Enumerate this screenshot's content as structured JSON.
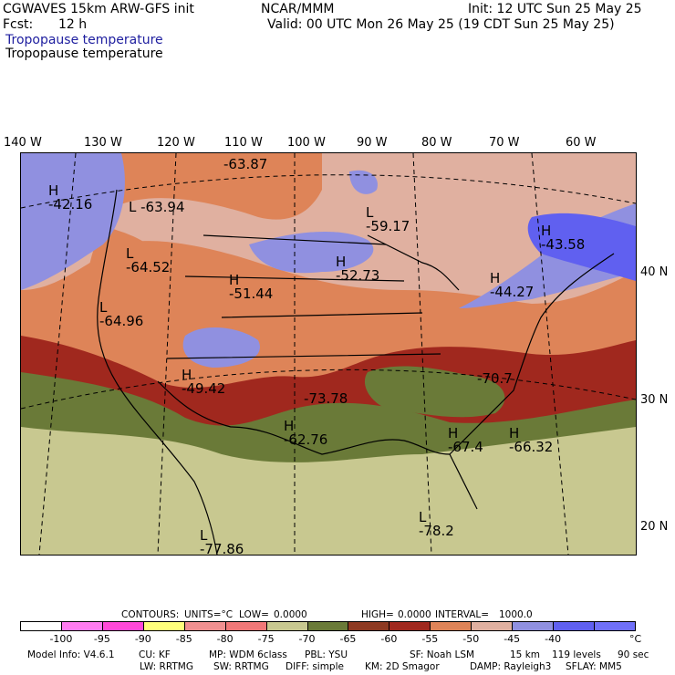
{
  "header": {
    "model": "CGWAVES 15km ARW-GFS init",
    "fcst_label": "Fcst:",
    "fcst_value": "12 h",
    "center": "NCAR/MMM",
    "init": "Init: 12 UTC Sun 25 May 25",
    "valid": "Valid: 00 UTC Mon 26 May 25 (19 CDT Sun 25 May 25)",
    "field_blue": "Tropopause temperature",
    "field_black": "Tropopause temperature"
  },
  "longitudes": [
    "140 W",
    "130 W",
    "120 W",
    "110 W",
    "100 W",
    "90 W",
    "80 W",
    "70 W",
    "60 W"
  ],
  "latitudes": [
    "40 N",
    "30 N",
    "20 N"
  ],
  "map_labels": [
    {
      "kind": "H",
      "value": "-42.16"
    },
    {
      "kind": "",
      "value": "-63.87"
    },
    {
      "kind": "L",
      "value": "-63.94"
    },
    {
      "kind": "L",
      "value": "-64.52"
    },
    {
      "kind": "L",
      "value": "-64.96"
    },
    {
      "kind": "H",
      "value": "-51.44"
    },
    {
      "kind": "H",
      "value": "-49.42"
    },
    {
      "kind": "L",
      "value": "-59.17"
    },
    {
      "kind": "H",
      "value": "-52.73"
    },
    {
      "kind": "H",
      "value": "-44.27"
    },
    {
      "kind": "H",
      "value": "-43.58"
    },
    {
      "kind": "",
      "value": "-73.78"
    },
    {
      "kind": "H",
      "value": "-62.76"
    },
    {
      "kind": "",
      "value": "-70.7"
    },
    {
      "kind": "H",
      "value": "-67.4"
    },
    {
      "kind": "H",
      "value": "-66.32"
    },
    {
      "kind": "L",
      "value": "-77.86"
    },
    {
      "kind": "L",
      "value": "-78.2"
    }
  ],
  "contours_line": {
    "contours": "CONTOURS:",
    "units": "UNITS=°C",
    "low": "LOW=",
    "low_value": "0.0000",
    "high": "HIGH=",
    "high_value": "0.0000",
    "interval": "INTERVAL=",
    "interval_value": "1000.0"
  },
  "legend": {
    "colors": [
      "#ffffff",
      "#ff7cf0",
      "#ff49d8",
      "#ffff7c",
      "#f09090",
      "#f07878",
      "#c8c890",
      "#6a7a38",
      "#8e3a22",
      "#a0281e",
      "#de8458",
      "#e0b0a0",
      "#9090e0",
      "#6060f0",
      "#7070f8"
    ],
    "ticks": [
      "-100",
      "-95",
      "-90",
      "-85",
      "-80",
      "-75",
      "-70",
      "-65",
      "-60",
      "-55",
      "-50",
      "-45",
      "-40"
    ],
    "unit": "°C"
  },
  "footer": {
    "line1": [
      "Model Info: V4.6.1",
      "CU: KF",
      "MP: WDM 6class",
      "PBL: YSU",
      "SF: Noah LSM",
      "15 km",
      "119 levels",
      "90 sec"
    ],
    "line2": [
      "LW: RRTMG",
      "SW: RRTMG",
      "DIFF: simple",
      "KM: 2D Smagor",
      "DAMP: Rayleigh3",
      "SFLAY: MM5"
    ]
  }
}
